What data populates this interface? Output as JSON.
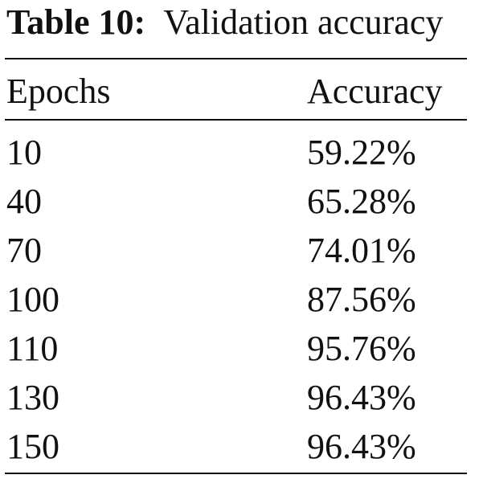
{
  "caption": {
    "label": "Table 10:",
    "text": "Validation accuracy"
  },
  "table": {
    "columns": [
      "Epochs",
      "Accuracy"
    ],
    "rows": [
      [
        "10",
        "59.22%"
      ],
      [
        "40",
        "65.28%"
      ],
      [
        "70",
        "74.01%"
      ],
      [
        "100",
        "87.56%"
      ],
      [
        "110",
        "95.76%"
      ],
      [
        "130",
        "96.43%"
      ],
      [
        "150",
        "96.43%"
      ]
    ]
  }
}
